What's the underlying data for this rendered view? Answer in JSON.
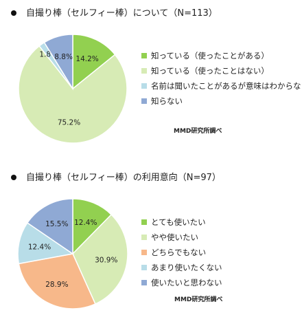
{
  "source": "MMD研究所調べ",
  "chart_data": [
    {
      "type": "pie",
      "title": "自撮り棒（セルフィー棒）について（N=113）",
      "categories": [
        "知っている（使ったことがある）",
        "知っている（使ったことはない）",
        "名前は聞いたことがあるが意味はわからない",
        "知らない"
      ],
      "values": [
        14.2,
        75.2,
        1.8,
        8.8
      ],
      "labels": [
        "14.2%",
        "75.2%",
        "1.8%",
        "8.8%"
      ],
      "colors": [
        "#92d050",
        "#d7ebb5",
        "#b8dde8",
        "#8fa9d4"
      ],
      "legend_position": "right"
    },
    {
      "type": "pie",
      "title": "自撮り棒（セルフィー棒）の利用意向（N=97）",
      "categories": [
        "とても使いたい",
        "やや使いたい",
        "どちらでもない",
        "あまり使いたくない",
        "使いたいと思わない"
      ],
      "values": [
        12.4,
        30.9,
        28.9,
        12.4,
        15.5
      ],
      "labels": [
        "12.4%",
        "30.9%",
        "28.9%",
        "12.4%",
        "15.5%"
      ],
      "colors": [
        "#92d050",
        "#d7ebb5",
        "#f7b88a",
        "#b8dde8",
        "#8fa9d4"
      ],
      "legend_position": "right"
    }
  ]
}
